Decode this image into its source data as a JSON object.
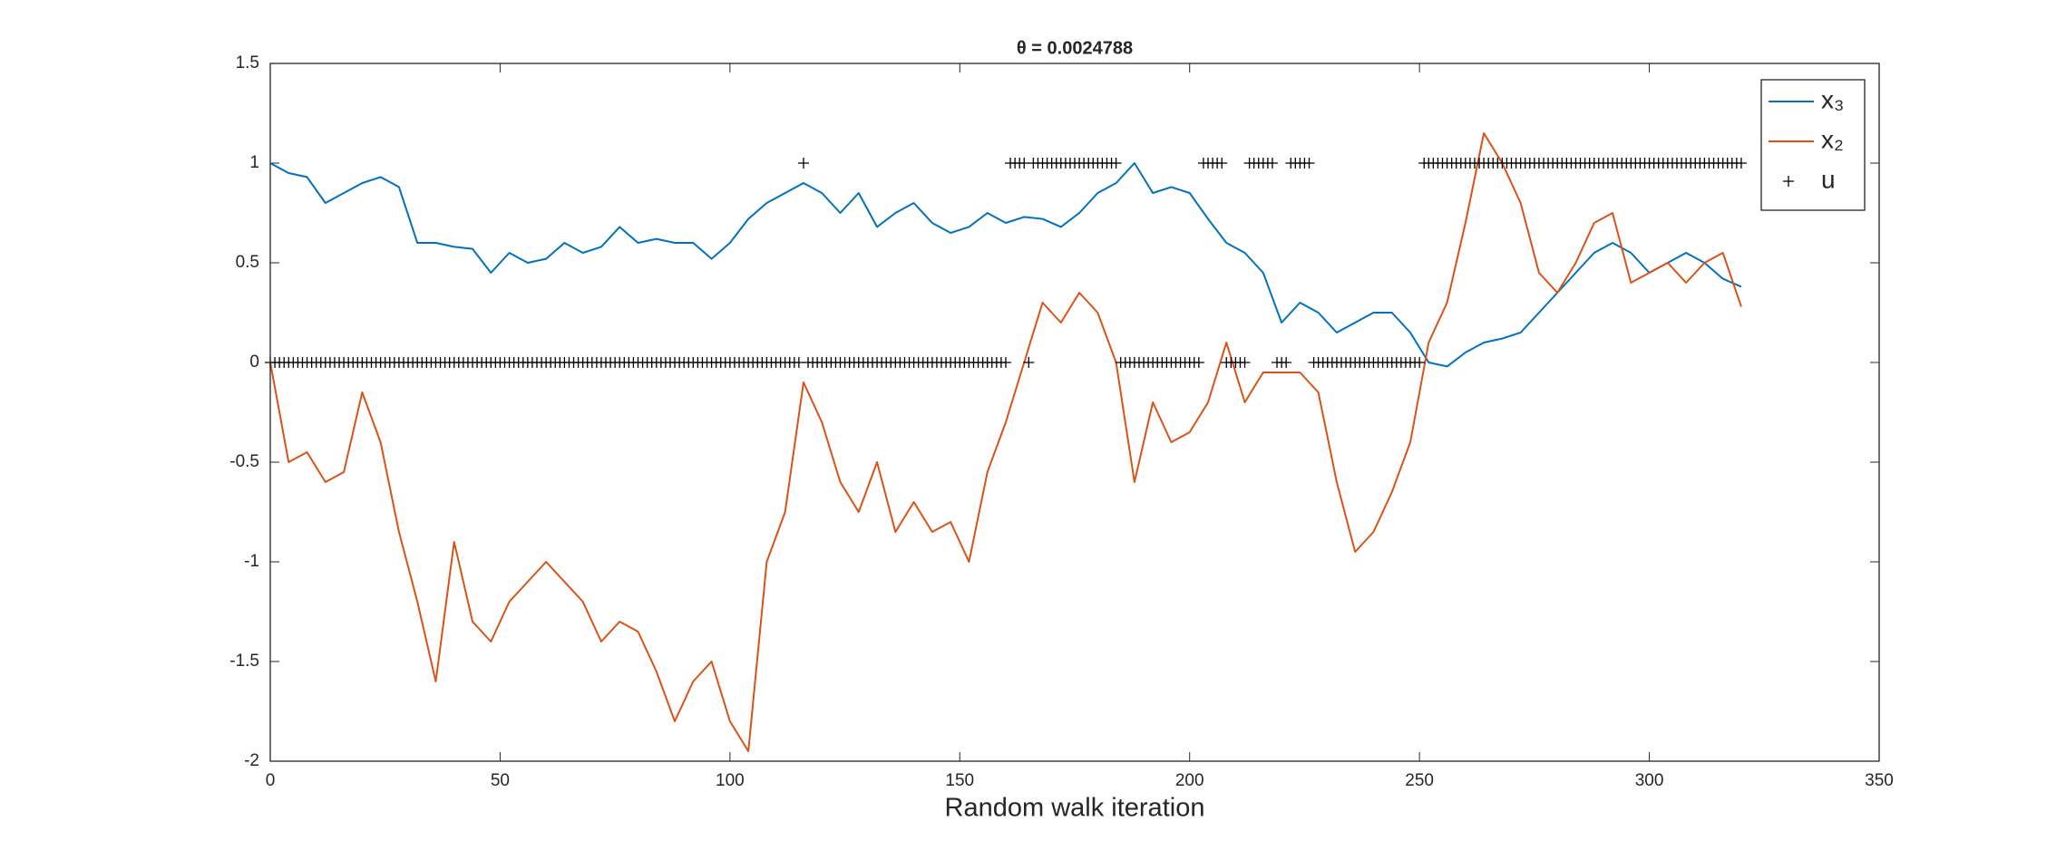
{
  "chart_data": {
    "type": "line",
    "title": "θ = 0.0024788",
    "xlabel": "Random walk iteration",
    "xlim": [
      0,
      350
    ],
    "xticks": [
      0,
      50,
      100,
      150,
      200,
      250,
      300,
      350
    ],
    "ylim": [
      -2,
      1.5
    ],
    "yticks": [
      -2,
      -1.5,
      -1,
      -0.5,
      0,
      0.5,
      1,
      1.5
    ],
    "legend": "top-right",
    "series": [
      {
        "name": "x₃",
        "color": "#0072BD",
        "marker": "none",
        "x": [
          0,
          4,
          8,
          12,
          16,
          20,
          24,
          28,
          32,
          36,
          40,
          44,
          48,
          52,
          56,
          60,
          64,
          68,
          72,
          76,
          80,
          84,
          88,
          92,
          96,
          100,
          104,
          108,
          112,
          116,
          120,
          124,
          128,
          132,
          136,
          140,
          144,
          148,
          152,
          156,
          160,
          164,
          168,
          172,
          176,
          180,
          184,
          188,
          192,
          196,
          200,
          204,
          208,
          212,
          216,
          220,
          224,
          228,
          232,
          236,
          240,
          244,
          248,
          252,
          256,
          260,
          264,
          268,
          272,
          276,
          280,
          284,
          288,
          292,
          296,
          300,
          304,
          308,
          312,
          316,
          320
        ],
        "values": [
          1.0,
          0.95,
          0.93,
          0.8,
          0.85,
          0.9,
          0.93,
          0.88,
          0.6,
          0.6,
          0.58,
          0.57,
          0.45,
          0.55,
          0.5,
          0.52,
          0.6,
          0.55,
          0.58,
          0.68,
          0.6,
          0.62,
          0.6,
          0.6,
          0.52,
          0.6,
          0.72,
          0.8,
          0.85,
          0.9,
          0.85,
          0.75,
          0.85,
          0.68,
          0.75,
          0.8,
          0.7,
          0.65,
          0.68,
          0.75,
          0.7,
          0.73,
          0.72,
          0.68,
          0.75,
          0.85,
          0.9,
          1.0,
          0.85,
          0.88,
          0.85,
          0.72,
          0.6,
          0.55,
          0.45,
          0.2,
          0.3,
          0.25,
          0.15,
          0.2,
          0.25,
          0.25,
          0.15,
          0.0,
          -0.02,
          0.05,
          0.1,
          0.12,
          0.15,
          0.25,
          0.35,
          0.45,
          0.55,
          0.6,
          0.55,
          0.45,
          0.5,
          0.55,
          0.5,
          0.42,
          0.38
        ]
      },
      {
        "name": "x₂",
        "color": "#D95319",
        "marker": "none",
        "x": [
          0,
          4,
          8,
          12,
          16,
          20,
          24,
          28,
          32,
          36,
          40,
          44,
          48,
          52,
          56,
          60,
          64,
          68,
          72,
          76,
          80,
          84,
          88,
          92,
          96,
          100,
          104,
          108,
          112,
          116,
          120,
          124,
          128,
          132,
          136,
          140,
          144,
          148,
          152,
          156,
          160,
          164,
          168,
          172,
          176,
          180,
          184,
          188,
          192,
          196,
          200,
          204,
          208,
          212,
          216,
          220,
          224,
          228,
          232,
          236,
          240,
          244,
          248,
          252,
          256,
          260,
          264,
          268,
          272,
          276,
          280,
          284,
          288,
          292,
          296,
          300,
          304,
          308,
          312,
          316,
          320
        ],
        "values": [
          0.0,
          -0.5,
          -0.45,
          -0.6,
          -0.55,
          -0.15,
          -0.4,
          -0.85,
          -1.2,
          -1.6,
          -0.9,
          -1.3,
          -1.4,
          -1.2,
          -1.1,
          -1.0,
          -1.1,
          -1.2,
          -1.4,
          -1.3,
          -1.35,
          -1.55,
          -1.8,
          -1.6,
          -1.5,
          -1.8,
          -1.95,
          -1.0,
          -0.75,
          -0.1,
          -0.3,
          -0.6,
          -0.75,
          -0.5,
          -0.85,
          -0.7,
          -0.85,
          -0.8,
          -1.0,
          -0.55,
          -0.3,
          0.0,
          0.3,
          0.2,
          0.35,
          0.25,
          0.0,
          -0.6,
          -0.2,
          -0.4,
          -0.35,
          -0.2,
          0.1,
          -0.2,
          -0.05,
          -0.05,
          -0.05,
          -0.15,
          -0.6,
          -0.95,
          -0.85,
          -0.65,
          -0.4,
          0.1,
          0.3,
          0.7,
          1.15,
          1.0,
          0.8,
          0.45,
          0.35,
          0.5,
          0.7,
          0.75,
          0.4,
          0.45,
          0.5,
          0.4,
          0.5,
          0.55,
          0.28
        ]
      },
      {
        "name": "u",
        "color": "#000000",
        "marker": "+",
        "x": [
          0,
          1,
          2,
          3,
          4,
          5,
          6,
          7,
          8,
          9,
          10,
          11,
          12,
          13,
          14,
          15,
          16,
          17,
          18,
          19,
          20,
          21,
          22,
          23,
          24,
          25,
          26,
          27,
          28,
          29,
          30,
          31,
          32,
          33,
          34,
          35,
          36,
          37,
          38,
          39,
          40,
          41,
          42,
          43,
          44,
          45,
          46,
          47,
          48,
          49,
          50,
          51,
          52,
          53,
          54,
          55,
          56,
          57,
          58,
          59,
          60,
          61,
          62,
          63,
          64,
          65,
          66,
          67,
          68,
          69,
          70,
          71,
          72,
          73,
          74,
          75,
          76,
          77,
          78,
          79,
          80,
          81,
          82,
          83,
          84,
          85,
          86,
          87,
          88,
          89,
          90,
          91,
          92,
          93,
          94,
          95,
          96,
          97,
          98,
          99,
          100,
          101,
          102,
          103,
          104,
          105,
          106,
          107,
          108,
          109,
          110,
          111,
          112,
          113,
          114,
          115,
          116,
          117,
          118,
          119,
          120,
          121,
          122,
          123,
          124,
          125,
          126,
          127,
          128,
          129,
          130,
          131,
          132,
          133,
          134,
          135,
          136,
          137,
          138,
          139,
          140,
          141,
          142,
          143,
          144,
          145,
          146,
          147,
          148,
          149,
          150,
          151,
          152,
          153,
          154,
          155,
          156,
          157,
          158,
          159,
          160,
          161,
          162,
          163,
          164,
          165,
          166,
          167,
          168,
          169,
          170,
          171,
          172,
          173,
          174,
          175,
          176,
          177,
          178,
          179,
          180,
          181,
          182,
          183,
          184,
          185,
          186,
          187,
          188,
          189,
          190,
          191,
          192,
          193,
          194,
          195,
          196,
          197,
          198,
          199,
          200,
          201,
          202,
          203,
          204,
          205,
          206,
          207,
          208,
          209,
          210,
          211,
          212,
          213,
          214,
          215,
          216,
          217,
          218,
          219,
          220,
          221,
          222,
          223,
          224,
          225,
          226,
          227,
          228,
          229,
          230,
          231,
          232,
          233,
          234,
          235,
          236,
          237,
          238,
          239,
          240,
          241,
          242,
          243,
          244,
          245,
          246,
          247,
          248,
          249,
          250,
          251,
          252,
          253,
          254,
          255,
          256,
          257,
          258,
          259,
          260,
          261,
          262,
          263,
          264,
          265,
          266,
          267,
          268,
          269,
          270,
          271,
          272,
          273,
          274,
          275,
          276,
          277,
          278,
          279,
          280,
          281,
          282,
          283,
          284,
          285,
          286,
          287,
          288,
          289,
          290,
          291,
          292,
          293,
          294,
          295,
          296,
          297,
          298,
          299,
          300,
          301,
          302,
          303,
          304,
          305,
          306,
          307,
          308,
          309,
          310,
          311,
          312,
          313,
          314,
          315,
          316,
          317,
          318,
          319,
          320
        ],
        "values": [
          0,
          0,
          0,
          0,
          0,
          0,
          0,
          0,
          0,
          0,
          0,
          0,
          0,
          0,
          0,
          0,
          0,
          0,
          0,
          0,
          0,
          0,
          0,
          0,
          0,
          0,
          0,
          0,
          0,
          0,
          0,
          0,
          0,
          0,
          0,
          0,
          0,
          0,
          0,
          0,
          0,
          0,
          0,
          0,
          0,
          0,
          0,
          0,
          0,
          0,
          0,
          0,
          0,
          0,
          0,
          0,
          0,
          0,
          0,
          0,
          0,
          0,
          0,
          0,
          0,
          0,
          0,
          0,
          0,
          0,
          0,
          0,
          0,
          0,
          0,
          0,
          0,
          0,
          0,
          0,
          0,
          0,
          0,
          0,
          0,
          0,
          0,
          0,
          0,
          0,
          0,
          0,
          0,
          0,
          0,
          0,
          0,
          0,
          0,
          0,
          0,
          0,
          0,
          0,
          0,
          0,
          0,
          0,
          0,
          0,
          0,
          0,
          0,
          0,
          0,
          0,
          1,
          0,
          0,
          0,
          0,
          0,
          0,
          0,
          0,
          0,
          0,
          0,
          0,
          0,
          0,
          0,
          0,
          0,
          0,
          0,
          0,
          0,
          0,
          0,
          0,
          0,
          0,
          0,
          0,
          0,
          0,
          0,
          0,
          0,
          0,
          0,
          0,
          0,
          0,
          0,
          0,
          0,
          0,
          0,
          0,
          1,
          1,
          1,
          1,
          0,
          1,
          1,
          1,
          1,
          1,
          1,
          1,
          1,
          1,
          1,
          1,
          1,
          1,
          1,
          1,
          1,
          1,
          1,
          1,
          0,
          0,
          0,
          0,
          0,
          0,
          0,
          0,
          0,
          0,
          0,
          0,
          0,
          0,
          0,
          0,
          0,
          0,
          1,
          1,
          1,
          1,
          1,
          0,
          0,
          0,
          0,
          0,
          1,
          1,
          1,
          1,
          1,
          1,
          0,
          0,
          0,
          1,
          1,
          1,
          1,
          1,
          0,
          0,
          0,
          0,
          0,
          0,
          0,
          0,
          0,
          0,
          0,
          0,
          0,
          0,
          0,
          0,
          0,
          0,
          0,
          0,
          0,
          0,
          0,
          0,
          1,
          1,
          1,
          1,
          1,
          1,
          1,
          1,
          1,
          1,
          1,
          1,
          1,
          1,
          1,
          1,
          1,
          1,
          1,
          1,
          1,
          1,
          1,
          1,
          1,
          1,
          1,
          1,
          1,
          1,
          1,
          1,
          1,
          1,
          1,
          1,
          1,
          1,
          1,
          1,
          1,
          1,
          1,
          1,
          1,
          1,
          1,
          1,
          1,
          1,
          1,
          1,
          1,
          1,
          1,
          1,
          1,
          1,
          1,
          1,
          1,
          1,
          1,
          1,
          1,
          1,
          1,
          1,
          1,
          1
        ]
      }
    ]
  }
}
